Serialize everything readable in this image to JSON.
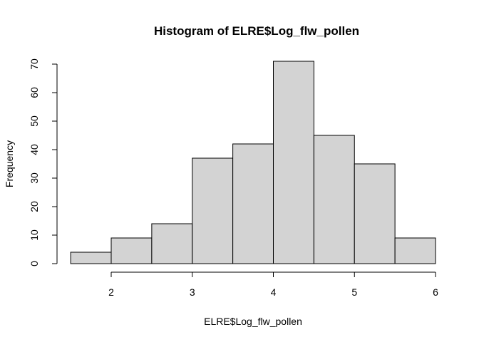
{
  "chart_data": {
    "type": "bar",
    "title": "Histogram of ELRE$Log_flw_pollen",
    "xlabel": "ELRE$Log_flw_pollen",
    "ylabel": "Frequency",
    "bins": [
      {
        "x0": 1.5,
        "x1": 2.0,
        "count": 4
      },
      {
        "x0": 2.0,
        "x1": 2.5,
        "count": 9
      },
      {
        "x0": 2.5,
        "x1": 3.0,
        "count": 14
      },
      {
        "x0": 3.0,
        "x1": 3.5,
        "count": 37
      },
      {
        "x0": 3.5,
        "x1": 4.0,
        "count": 42
      },
      {
        "x0": 4.0,
        "x1": 4.5,
        "count": 71
      },
      {
        "x0": 4.5,
        "x1": 5.0,
        "count": 45
      },
      {
        "x0": 5.0,
        "x1": 5.5,
        "count": 35
      },
      {
        "x0": 5.5,
        "x1": 6.0,
        "count": 9
      }
    ],
    "xticks": [
      2,
      3,
      4,
      5,
      6
    ],
    "yticks": [
      0,
      10,
      20,
      30,
      40,
      50,
      60,
      70
    ],
    "xlim": [
      1.5,
      6
    ],
    "ylim": [
      0,
      70
    ],
    "grid": false,
    "bar_fill": "#d3d3d3",
    "bar_stroke": "#000000"
  }
}
